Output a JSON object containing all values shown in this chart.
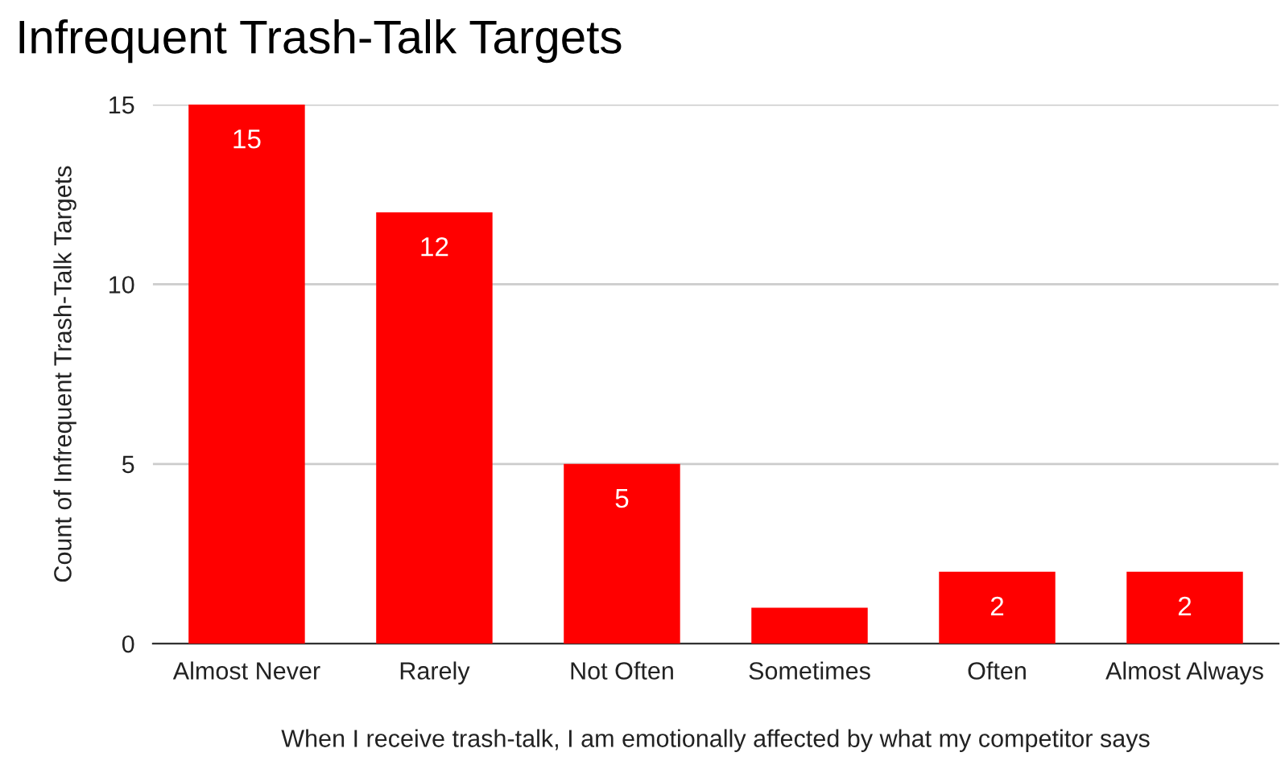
{
  "chart_data": {
    "type": "bar",
    "title": "Infrequent Trash-Talk Targets",
    "xlabel": "When I receive trash-talk, I am emotionally affected by what my competitor says",
    "ylabel": "Count of Infrequent Trash-Talk Targets",
    "categories": [
      "Almost Never",
      "Rarely",
      "Not Often",
      "Sometimes",
      "Often",
      "Almost Always"
    ],
    "values": [
      15,
      12,
      5,
      1,
      2,
      2
    ],
    "value_labels": [
      "15",
      "12",
      "5",
      null,
      "2",
      "2"
    ],
    "color": "#ff0000",
    "ylim": [
      0,
      15
    ],
    "yticks": [
      0,
      5,
      10,
      15
    ],
    "grid": "y"
  }
}
